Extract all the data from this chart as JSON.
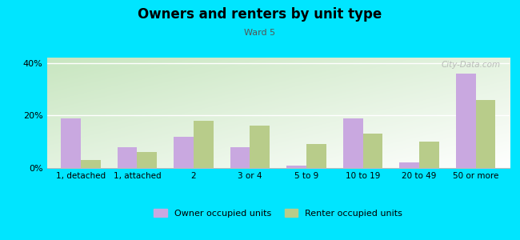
{
  "title": "Owners and renters by unit type",
  "subtitle": "Ward 5",
  "categories": [
    "1, detached",
    "1, attached",
    "2",
    "3 or 4",
    "5 to 9",
    "10 to 19",
    "20 to 49",
    "50 or more"
  ],
  "owner_values": [
    19,
    8,
    12,
    8,
    1,
    19,
    2,
    36
  ],
  "renter_values": [
    3,
    6,
    18,
    16,
    9,
    13,
    10,
    26
  ],
  "owner_color": "#c9a8e0",
  "renter_color": "#b8cc8a",
  "background_color": "#00e5ff",
  "ylim": [
    0,
    42
  ],
  "yticks": [
    0,
    20,
    40
  ],
  "ytick_labels": [
    "0%",
    "20%",
    "40%"
  ],
  "owner_label": "Owner occupied units",
  "renter_label": "Renter occupied units",
  "bar_width": 0.35,
  "watermark": "City-Data.com",
  "grad_top_left": "#c8e6c0",
  "grad_bottom_right": "#f5fff5"
}
